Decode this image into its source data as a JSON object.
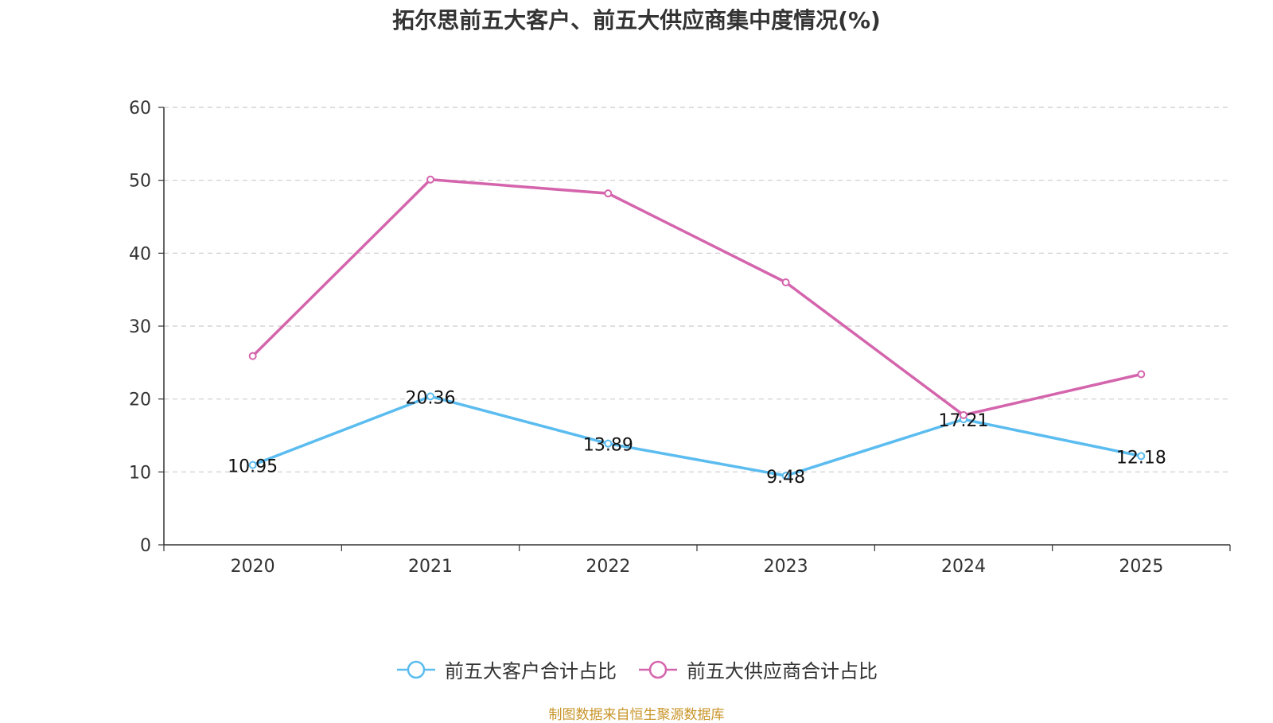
{
  "chart_data": {
    "type": "line",
    "title": "拓尔思前五大客户、前五大供应商集中度情况(%)",
    "categories": [
      "2020",
      "2021",
      "2022",
      "2023",
      "2024",
      "2025"
    ],
    "ylim": [
      0,
      60
    ],
    "yticks": [
      0,
      10,
      20,
      30,
      40,
      50,
      60
    ],
    "grid": true,
    "legend_position": "bottom",
    "series": [
      {
        "name": "前五大客户合计占比",
        "color": "#5bbcf0",
        "values": [
          10.95,
          20.36,
          13.89,
          9.48,
          17.21,
          12.18
        ],
        "labels": [
          "10.95",
          "20.36",
          "13.89",
          "9.48",
          "17.21",
          "12.18"
        ],
        "show_labels": true
      },
      {
        "name": "前五大供应商合计占比",
        "color": "#d465ad",
        "values": [
          25.9,
          50.1,
          48.2,
          36.0,
          17.8,
          23.4
        ],
        "labels": [],
        "show_labels": false
      }
    ]
  },
  "source": "制图数据来自恒生聚源数据库"
}
